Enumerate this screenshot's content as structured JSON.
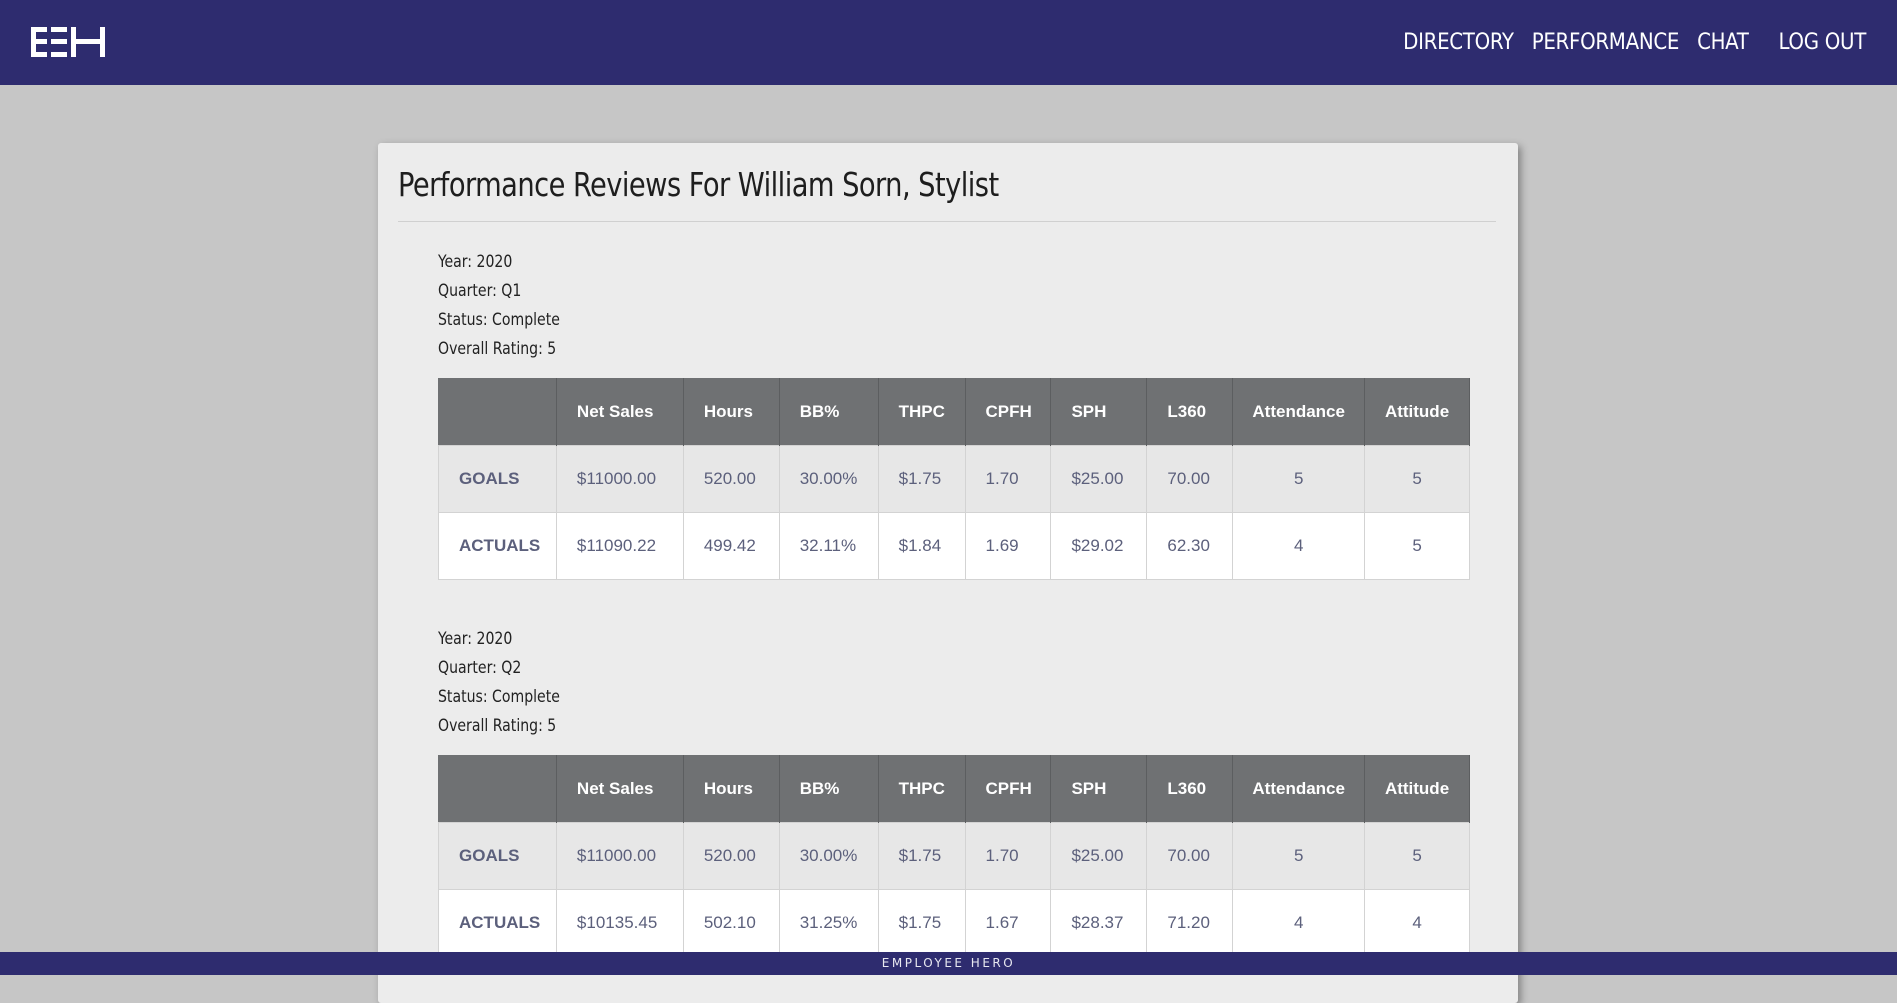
{
  "nav": {
    "logo_text": "EEH",
    "items": [
      {
        "label": "DIRECTORY"
      },
      {
        "label": "PERFORMANCE"
      },
      {
        "label": "CHAT"
      },
      {
        "label": "LOG OUT"
      }
    ]
  },
  "page": {
    "title": "Performance Reviews For William Sorn, Stylist"
  },
  "table_headers": [
    "",
    "Net Sales",
    "Hours",
    "BB%",
    "THPC",
    "CPFH",
    "SPH",
    "L360",
    "Attendance",
    "Attitude"
  ],
  "reviews": [
    {
      "year": "Year: 2020",
      "quarter": "Quarter: Q1",
      "status": "Status: Complete",
      "rating": "Overall Rating: 5",
      "rows": [
        {
          "label": "GOALS",
          "values": [
            "$11000.00",
            "520.00",
            "30.00%",
            "$1.75",
            "1.70",
            "$25.00",
            "70.00",
            "5",
            "5"
          ]
        },
        {
          "label": "ACTUALS",
          "values": [
            "$11090.22",
            "499.42",
            "32.11%",
            "$1.84",
            "1.69",
            "$29.02",
            "62.30",
            "4",
            "5"
          ]
        }
      ]
    },
    {
      "year": "Year: 2020",
      "quarter": "Quarter: Q2",
      "status": "Status: Complete",
      "rating": "Overall Rating: 5",
      "rows": [
        {
          "label": "GOALS",
          "values": [
            "$11000.00",
            "520.00",
            "30.00%",
            "$1.75",
            "1.70",
            "$25.00",
            "70.00",
            "5",
            "5"
          ]
        },
        {
          "label": "ACTUALS",
          "values": [
            "$10135.45",
            "502.10",
            "31.25%",
            "$1.75",
            "1.67",
            "$28.37",
            "71.20",
            "4",
            "4"
          ]
        }
      ]
    }
  ],
  "footer": {
    "text": "EMPLOYEE HERO"
  },
  "colors": {
    "navbar": "#2e2c6f",
    "background": "#c6c6c6",
    "card": "#ececec",
    "table_header": "#6f7173",
    "cell_text": "#5c607c"
  }
}
